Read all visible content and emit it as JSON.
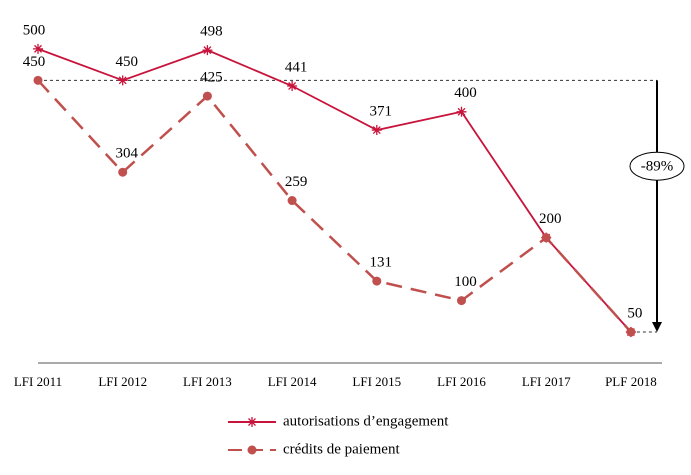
{
  "chart_data": {
    "type": "line",
    "categories": [
      "LFI 2011",
      "LFI 2012",
      "LFI 2013",
      "LFI 2014",
      "LFI 2015",
      "LFI 2016",
      "LFI 2017",
      "PLF 2018"
    ],
    "series": [
      {
        "name": "autorisations d’engagement",
        "color": "#c8143c",
        "marker": "star",
        "line_style": "solid",
        "values": [
          500,
          450,
          498,
          441,
          371,
          400,
          200,
          50
        ]
      },
      {
        "name": "crédits de paiement",
        "color": "#c0504d",
        "marker": "circle",
        "line_style": "dashed",
        "values": [
          450,
          304,
          425,
          259,
          131,
          100,
          200,
          50
        ]
      }
    ],
    "ylim": [
      0,
      530
    ],
    "annotation": "-89%"
  }
}
